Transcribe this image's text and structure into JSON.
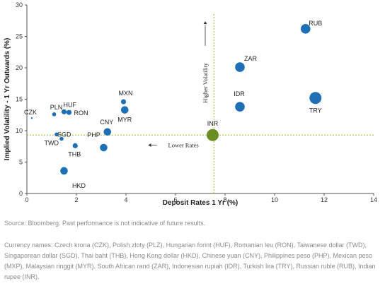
{
  "chart_data": {
    "type": "scatter",
    "xlabel": "Deposit Rates 1 Yr (%)",
    "ylabel": "Implied Volatility - 1 Yr Outwards (%)",
    "xlim": [
      0,
      14
    ],
    "ylim": [
      0,
      30
    ],
    "x_ticks": [
      "0",
      "2",
      "4",
      "6",
      "8",
      "10",
      "12",
      "14"
    ],
    "y_ticks": [
      "0",
      "5",
      "10",
      "15",
      "20",
      "25",
      "30"
    ],
    "grid": false,
    "colors": {
      "point": "#1f6fb5",
      "highlight": "#6b8e23",
      "guide": "#9ab83a"
    },
    "points": [
      {
        "label": "CZK",
        "x": 0.2,
        "y": 12.0,
        "size": 1,
        "highlight": false
      },
      {
        "label": "PLN",
        "x": 1.1,
        "y": 12.6,
        "size": 2,
        "highlight": false
      },
      {
        "label": "HUF",
        "x": 1.5,
        "y": 13.0,
        "size": 3,
        "highlight": false
      },
      {
        "label": "RON",
        "x": 1.7,
        "y": 12.9,
        "size": 3,
        "highlight": false
      },
      {
        "label": "SGD",
        "x": 1.2,
        "y": 9.4,
        "size": 2,
        "highlight": false
      },
      {
        "label": "TWD",
        "x": 1.4,
        "y": 8.7,
        "size": 2,
        "highlight": false
      },
      {
        "label": "THB",
        "x": 1.95,
        "y": 7.6,
        "size": 3,
        "highlight": false
      },
      {
        "label": "HKD",
        "x": 1.5,
        "y": 3.6,
        "size": 4,
        "highlight": false
      },
      {
        "label": "CNY",
        "x": 3.25,
        "y": 9.8,
        "size": 4,
        "highlight": false
      },
      {
        "label": "PHP",
        "x": 3.1,
        "y": 7.3,
        "size": 4,
        "highlight": false
      },
      {
        "label": "MXN",
        "x": 3.9,
        "y": 14.6,
        "size": 3,
        "highlight": false
      },
      {
        "label": "MYR",
        "x": 3.95,
        "y": 13.3,
        "size": 4,
        "highlight": false
      },
      {
        "label": "INR",
        "x": 7.5,
        "y": 9.3,
        "size": 6,
        "highlight": true
      },
      {
        "label": "ZAR",
        "x": 8.6,
        "y": 20.1,
        "size": 5,
        "highlight": false
      },
      {
        "label": "IDR",
        "x": 8.6,
        "y": 13.8,
        "size": 5,
        "highlight": false
      },
      {
        "label": "RUB",
        "x": 11.25,
        "y": 26.2,
        "size": 5,
        "highlight": false
      },
      {
        "label": "TRY",
        "x": 11.65,
        "y": 15.2,
        "size": 6,
        "highlight": false
      }
    ],
    "reference_lines": {
      "x": 7.55,
      "y": 9.3
    },
    "annotations": {
      "lower_rates": "Lower Rates",
      "higher_volatility": "Higher Volatility"
    }
  },
  "notes": {
    "source": "Source: Bloomberg. Past performance is not indicative of future results.",
    "currency_names": "Currency names: Czech krona (CZK), Polish zloty (PLZ), Hungarian forint (HUF), Romanian leu (RON), Taiwanese dollar (TWD), Singaporean dollar (SGD), Thai baht (THB), Hong Kong dollar (HKD), Chinese yuan (CNY), Philippines peso (PHP), Mexican peso (MXP), Malaysian ringgit (MYR), South African rand (ZAR), Indonesian rupiah (IDR), Turkish lira (TRY), Russian ruble (RUB), Indian rupee (INR)."
  }
}
